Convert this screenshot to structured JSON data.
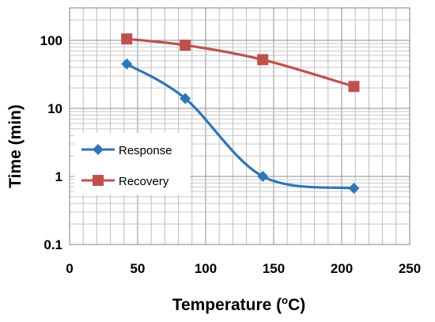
{
  "chart_data": {
    "type": "line",
    "xlabel": "Temperature (",
    "xlabel_unit": "o",
    "xlabel_suffix": "C)",
    "ylabel": "Time (min)",
    "xlim": [
      0,
      250
    ],
    "x_ticks": [
      0,
      50,
      100,
      150,
      200,
      250
    ],
    "x_tick_labels": [
      "0",
      "50",
      "100",
      "150",
      "200",
      "250"
    ],
    "y_scale": "log",
    "ylim": [
      0.1,
      300
    ],
    "y_ticks": [
      0.1,
      1,
      10,
      100
    ],
    "y_tick_labels": [
      "0.1",
      "1",
      "10",
      "100"
    ],
    "grid": true,
    "legend_position": "left-middle",
    "series": [
      {
        "name": "Response",
        "color": "#2e75b6",
        "marker": "diamond",
        "x": [
          42,
          85,
          142,
          209
        ],
        "y": [
          45,
          14,
          1.0,
          0.67
        ]
      },
      {
        "name": "Recovery",
        "color": "#c0504d",
        "marker": "square",
        "x": [
          42,
          85,
          142,
          209
        ],
        "y": [
          105,
          85,
          52,
          21
        ]
      }
    ]
  }
}
